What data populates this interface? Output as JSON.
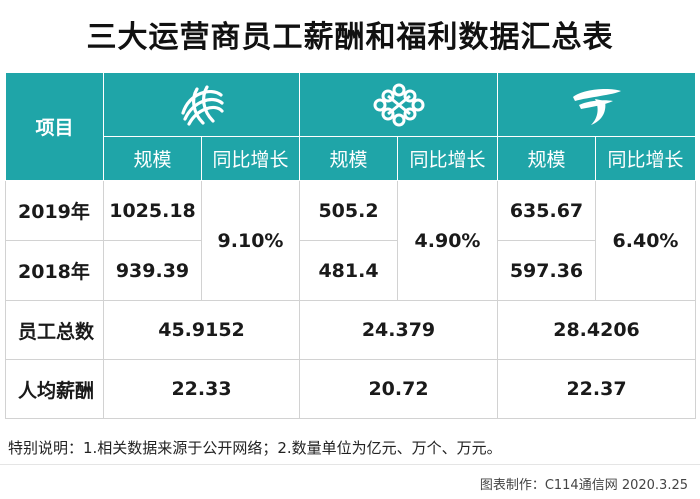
{
  "title": "三大运营商员工薪酬和福利数据汇总表",
  "header": {
    "item_label": "项目",
    "operators": [
      {
        "icon": "china-mobile-logo-icon",
        "scale_label": "规模",
        "growth_label": "同比增长"
      },
      {
        "icon": "china-unicom-logo-icon",
        "scale_label": "规模",
        "growth_label": "同比增长"
      },
      {
        "icon": "china-telecom-logo-icon",
        "scale_label": "规模",
        "growth_label": "同比增长"
      }
    ]
  },
  "rows": {
    "y2019": {
      "label": "2019年",
      "values": [
        "1025.18",
        "505.2",
        "635.67"
      ]
    },
    "y2018": {
      "label": "2018年",
      "values": [
        "939.39",
        "481.4",
        "597.36"
      ]
    },
    "growth": [
      "9.10%",
      "4.90%",
      "6.40%"
    ],
    "employees": {
      "label": "员工总数",
      "values": [
        "45.9152",
        "24.379",
        "28.4206"
      ]
    },
    "avg_pay": {
      "label": "人均薪酬",
      "values": [
        "22.33",
        "20.72",
        "22.37"
      ]
    }
  },
  "note": "特别说明：1.相关数据来源于公开网络；2.数量单位为亿元、万个、万元。",
  "credit": "图表制作：C114通信网 2020.3.25",
  "colors": {
    "header_bg": "#1fa5a8",
    "border": "#d2d2d2"
  }
}
